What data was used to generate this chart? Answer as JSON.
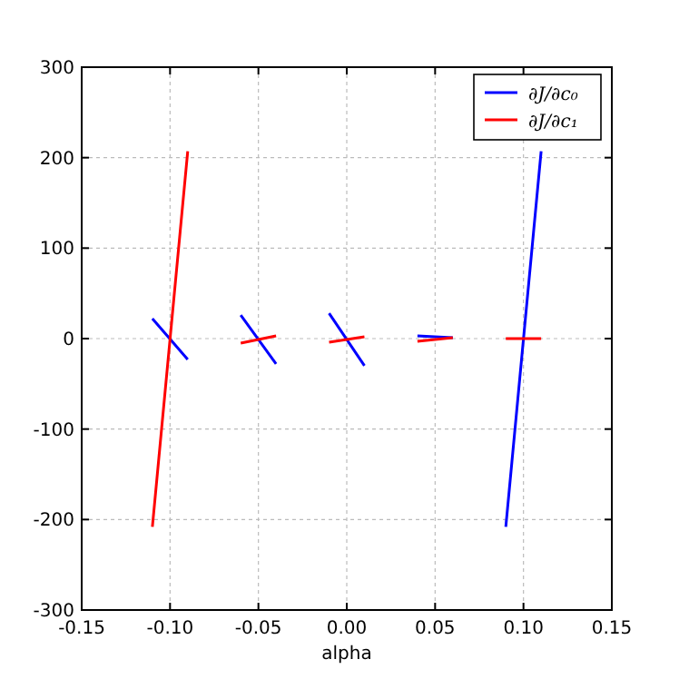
{
  "chart_data": {
    "type": "line",
    "xlabel": "alpha",
    "x": [
      -0.11,
      -0.09,
      -0.08,
      -0.06,
      -0.04,
      -0.03,
      -0.01,
      0.01,
      0.02,
      0.04,
      0.06,
      0.07,
      0.09,
      0.11
    ],
    "series": [
      {
        "name": "∂J/∂c₀",
        "color": "#0000ff",
        "values": [
          22,
          -23,
          null,
          26,
          -28,
          null,
          28,
          -30,
          null,
          3,
          1,
          null,
          -208,
          207
        ]
      },
      {
        "name": "∂J/∂c₁",
        "color": "#ff0000",
        "values": [
          -208,
          207,
          null,
          -5,
          3,
          null,
          -4,
          2,
          null,
          -3,
          1,
          null,
          0,
          0
        ]
      }
    ],
    "xlim": [
      -0.15,
      0.15
    ],
    "xticks": [
      {
        "value": -0.15,
        "label": "-0.15"
      },
      {
        "value": -0.1,
        "label": "-0.10"
      },
      {
        "value": -0.05,
        "label": "-0.05"
      },
      {
        "value": 0,
        "label": "0.00"
      },
      {
        "value": 0.05,
        "label": "0.05"
      },
      {
        "value": 0.1,
        "label": "0.10"
      },
      {
        "value": 0.15,
        "label": "0.15"
      }
    ],
    "ylim": [
      -300,
      300
    ],
    "yticks": [
      -300,
      -200,
      -100,
      0,
      100,
      200,
      300
    ],
    "grid": true,
    "legend": "top right",
    "line_style": "solid",
    "marker": "none"
  }
}
